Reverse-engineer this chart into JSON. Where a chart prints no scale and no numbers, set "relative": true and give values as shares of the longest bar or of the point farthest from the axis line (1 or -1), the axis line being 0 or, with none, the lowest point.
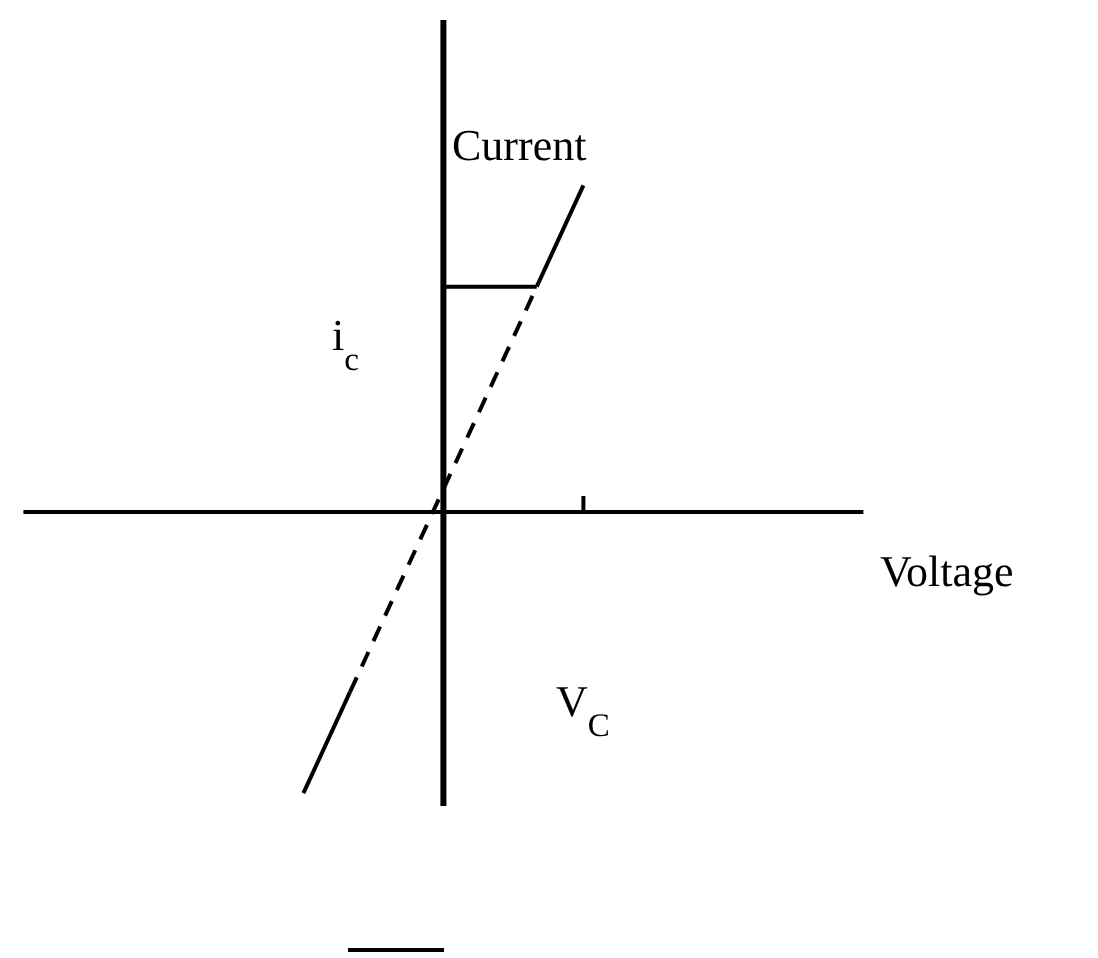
{
  "chart_data": {
    "type": "line",
    "relative": true,
    "ylabel": "Current",
    "categories": [
      null,
      null,
      null,
      null,
      null,
      null,
      null
    ],
    "series": [
      {
        "color": "#000000",
        "line_style": "solid",
        "values": [
          -0.861,
          -0.551,
          null,
          null,
          null,
          null,
          null
        ]
      },
      {
        "color": "#000000",
        "line_style": "dashed",
        "values": [
          null,
          -0.551,
          -0.24,
          0.07,
          0.379,
          0.69,
          null
        ]
      },
      {
        "color": "#000000",
        "line_style": "solid",
        "values": [
          null,
          null,
          null,
          null,
          null,
          0.69,
          1
        ]
      },
      {
        "color": "#000000",
        "line_style": "solid",
        "values": [
          null,
          null,
          null,
          0.69,
          0.69,
          0.69,
          null
        ]
      }
    ],
    "annotations": [
      "i$_{c}$",
      "Voltage",
      "V$_{C}$"
    ]
  }
}
